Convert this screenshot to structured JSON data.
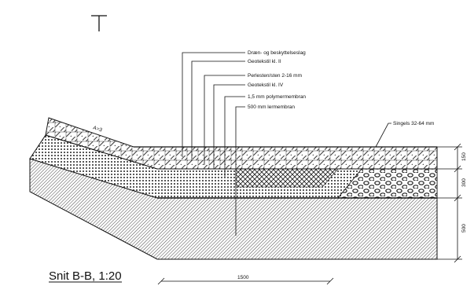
{
  "section_title": "Snit B-B, 1:20",
  "layer_labels": [
    "Dræn- og beskyttelseslag",
    "Geotekstil kl. II",
    "Perlesten/sten 2-16 mm",
    "Geotekstil kl. IV",
    "1,5 mm polymermembran",
    "500 mm lermembran"
  ],
  "right_label": "Singels 32-64 mm",
  "slope_label": "A=3",
  "dimensions": {
    "horizontal": "1500",
    "vertical": [
      "150",
      "300",
      "500"
    ]
  }
}
